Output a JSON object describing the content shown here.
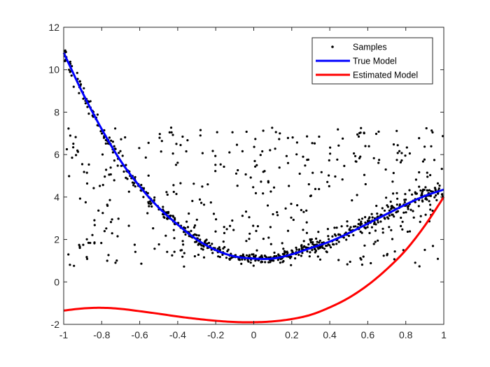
{
  "chart_data": {
    "type": "line",
    "title": "",
    "xlabel": "",
    "ylabel": "",
    "xlim": [
      -1,
      1
    ],
    "ylim": [
      -2,
      12
    ],
    "x_ticks": [
      "-1",
      "-0.8",
      "-0.6",
      "-0.4",
      "-0.2",
      "0",
      "0.2",
      "0.4",
      "0.6",
      "0.8",
      "1"
    ],
    "y_ticks": [
      "-2",
      "0",
      "2",
      "4",
      "6",
      "8",
      "10",
      "12"
    ],
    "grid": false,
    "legend_position": "top-right",
    "legend": [
      "Samples",
      "True Model",
      "Estimated Model"
    ],
    "series": [
      {
        "name": "Samples",
        "kind": "scatter",
        "color": "#000000",
        "description_of_points": "Black dots: about 60% lie near the True Model curve with small noise; the rest are uniformly scattered between y≈0.7 and y≈7.3 across x in [-1, 1].",
        "inlier_fraction": 0.6,
        "outlier_range": [
          0.7,
          7.3
        ],
        "count": 1000
      },
      {
        "name": "True Model",
        "kind": "line",
        "color": "#0000ff",
        "x": [
          -1,
          -0.9,
          -0.8,
          -0.7,
          -0.6,
          -0.5,
          -0.4,
          -0.3,
          -0.2,
          -0.1,
          0,
          0.1,
          0.2,
          0.3,
          0.4,
          0.5,
          0.6,
          0.7,
          0.8,
          0.9,
          1
        ],
        "y": [
          10.8,
          8.9,
          7.2,
          5.7,
          4.5,
          3.5,
          2.7,
          2.0,
          1.5,
          1.2,
          1.1,
          1.1,
          1.3,
          1.6,
          1.9,
          2.3,
          2.75,
          3.2,
          3.65,
          4.05,
          4.35
        ]
      },
      {
        "name": "Estimated Model",
        "kind": "line",
        "color": "#ff0000",
        "x": [
          -1,
          -0.9,
          -0.8,
          -0.7,
          -0.6,
          -0.5,
          -0.4,
          -0.3,
          -0.2,
          -0.1,
          0,
          0.1,
          0.2,
          0.3,
          0.4,
          0.5,
          0.6,
          0.7,
          0.8,
          0.9,
          1
        ],
        "y": [
          -1.35,
          -1.25,
          -1.22,
          -1.27,
          -1.38,
          -1.5,
          -1.63,
          -1.74,
          -1.83,
          -1.89,
          -1.9,
          -1.86,
          -1.75,
          -1.55,
          -1.2,
          -0.75,
          -0.15,
          0.6,
          1.5,
          2.65,
          4.0
        ]
      }
    ]
  }
}
